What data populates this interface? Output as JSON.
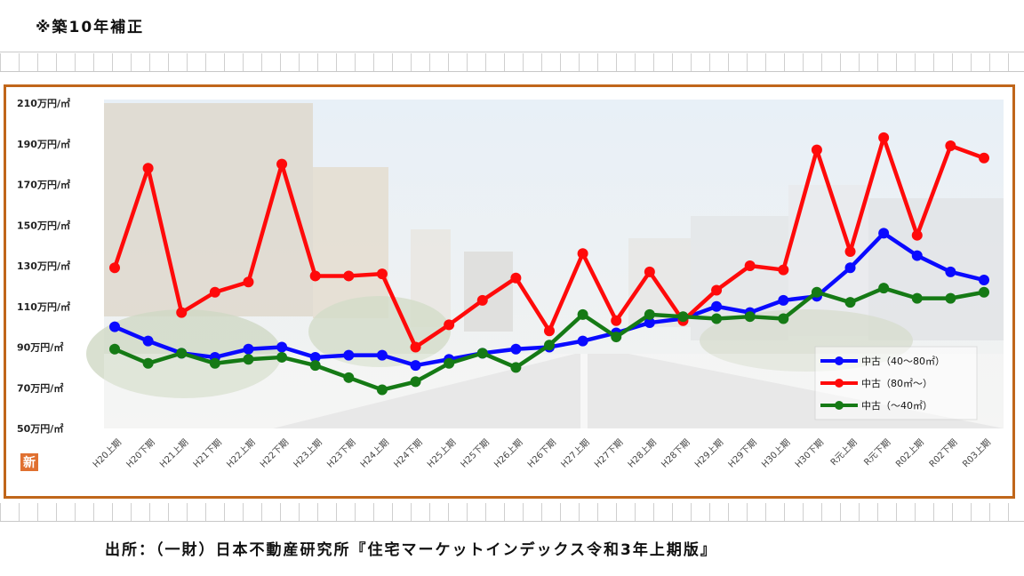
{
  "note": "※築10年補正",
  "source": "出所：（一財）日本不動産研究所『住宅マーケットインデックス令和3年上期版』",
  "logo_text": "新",
  "chart_data": {
    "type": "line",
    "title": "",
    "xlabel": "",
    "ylabel": "",
    "ylim": [
      50,
      210
    ],
    "y_ticks": [
      50,
      70,
      90,
      110,
      130,
      150,
      170,
      190,
      210
    ],
    "y_tick_labels": [
      "50万円/㎡",
      "70万円/㎡",
      "90万円/㎡",
      "110万円/㎡",
      "130万円/㎡",
      "150万円/㎡",
      "170万円/㎡",
      "190万円/㎡",
      "210万円/㎡"
    ],
    "categories": [
      "H20上期",
      "H20下期",
      "H21上期",
      "H21下期",
      "H22上期",
      "H22下期",
      "H23上期",
      "H23下期",
      "H24上期",
      "H24下期",
      "H25上期",
      "H25下期",
      "H26上期",
      "H26下期",
      "H27上期",
      "H27下期",
      "H28上期",
      "H28下期",
      "H29上期",
      "H29下期",
      "H30上期",
      "H30下期",
      "R元上期",
      "R元下期",
      "R02上期",
      "R02下期",
      "R03上期"
    ],
    "legend_position": "bottom-right",
    "series": [
      {
        "name": "中古（40～80㎡）",
        "color": "#0a0aff",
        "values": [
          100,
          93,
          87,
          85,
          89,
          90,
          85,
          86,
          86,
          81,
          84,
          87,
          89,
          90,
          93,
          97,
          102,
          104,
          110,
          107,
          113,
          115,
          129,
          146,
          135,
          127,
          123
        ]
      },
      {
        "name": "中古（80㎡～）",
        "color": "#ff0a0a",
        "values": [
          129,
          178,
          107,
          117,
          122,
          180,
          125,
          125,
          126,
          90,
          101,
          113,
          124,
          98,
          136,
          103,
          127,
          103,
          118,
          130,
          128,
          187,
          137,
          193,
          145,
          189,
          183
        ]
      },
      {
        "name": "中古（～40㎡）",
        "color": "#157a15",
        "values": [
          89,
          82,
          87,
          82,
          84,
          85,
          81,
          75,
          69,
          73,
          82,
          87,
          80,
          91,
          106,
          95,
          106,
          105,
          104,
          105,
          104,
          117,
          112,
          119,
          114,
          114,
          117
        ]
      }
    ]
  }
}
